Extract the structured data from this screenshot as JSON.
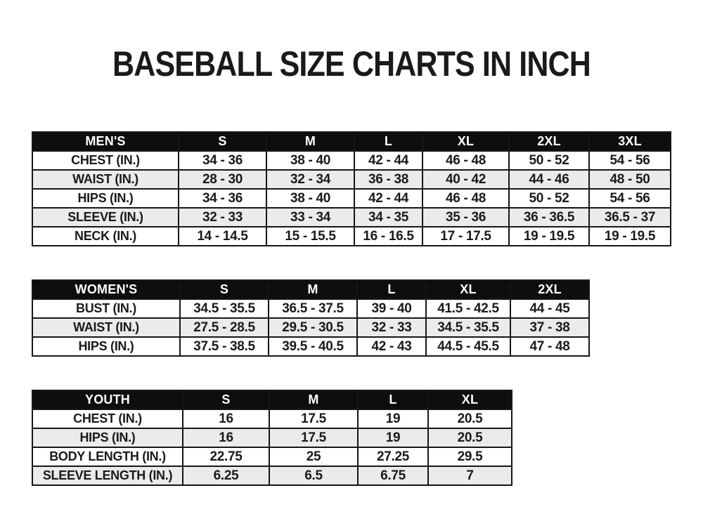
{
  "title": "BASEBALL SIZE CHARTS IN INCH",
  "colors": {
    "background": "#ffffff",
    "header_bg": "#0e0e0e",
    "header_text": "#ffffff",
    "row_alt_bg": "#ebebeb",
    "border": "#161616",
    "text": "#1a1a1a"
  },
  "chart_data": [
    {
      "type": "table",
      "title": "MEN'S",
      "header": [
        "MEN'S",
        "S",
        "M",
        "L",
        "XL",
        "2XL",
        "3XL"
      ],
      "rows": [
        {
          "label": "CHEST (IN.)",
          "values": [
            "34 - 36",
            "38 - 40",
            "42 - 44",
            "46 - 48",
            "50 - 52",
            "54 - 56"
          ]
        },
        {
          "label": "WAIST (IN.)",
          "values": [
            "28 - 30",
            "32 - 34",
            "36 - 38",
            "40 - 42",
            "44 - 46",
            "48 - 50"
          ]
        },
        {
          "label": "HIPS (IN.)",
          "values": [
            "34 - 36",
            "38 - 40",
            "42 - 44",
            "46 - 48",
            "50 - 52",
            "54 - 56"
          ]
        },
        {
          "label": "SLEEVE (IN.)",
          "values": [
            "32 - 33",
            "33 - 34",
            "34 - 35",
            "35 - 36",
            "36 - 36.5",
            "36.5 - 37"
          ]
        },
        {
          "label": "NECK (IN.)",
          "values": [
            "14 - 14.5",
            "15 - 15.5",
            "16 - 16.5",
            "17 - 17.5",
            "19 - 19.5",
            "19 - 19.5"
          ]
        }
      ]
    },
    {
      "type": "table",
      "title": "WOMEN'S",
      "header": [
        "WOMEN'S",
        "S",
        "M",
        "L",
        "XL",
        "2XL"
      ],
      "rows": [
        {
          "label": "BUST (IN.)",
          "values": [
            "34.5 - 35.5",
            "36.5 - 37.5",
            "39 - 40",
            "41.5 - 42.5",
            "44 - 45"
          ]
        },
        {
          "label": "WAIST (IN.)",
          "values": [
            "27.5 - 28.5",
            "29.5 - 30.5",
            "32 - 33",
            "34.5 - 35.5",
            "37 - 38"
          ]
        },
        {
          "label": "HIPS (IN.)",
          "values": [
            "37.5 - 38.5",
            "39.5 - 40.5",
            "42 - 43",
            "44.5 - 45.5",
            "47 - 48"
          ]
        }
      ]
    },
    {
      "type": "table",
      "title": "YOUTH",
      "header": [
        "YOUTH",
        "S",
        "M",
        "L",
        "XL"
      ],
      "rows": [
        {
          "label": "CHEST (IN.)",
          "values": [
            "16",
            "17.5",
            "19",
            "20.5"
          ]
        },
        {
          "label": "HIPS (IN.)",
          "values": [
            "16",
            "17.5",
            "19",
            "20.5"
          ]
        },
        {
          "label": "BODY LENGTH (IN.)",
          "values": [
            "22.75",
            "25",
            "27.25",
            "29.5"
          ]
        },
        {
          "label": "SLEEVE LENGTH (IN.)",
          "values": [
            "6.25",
            "6.5",
            "6.75",
            "7"
          ]
        }
      ]
    }
  ]
}
